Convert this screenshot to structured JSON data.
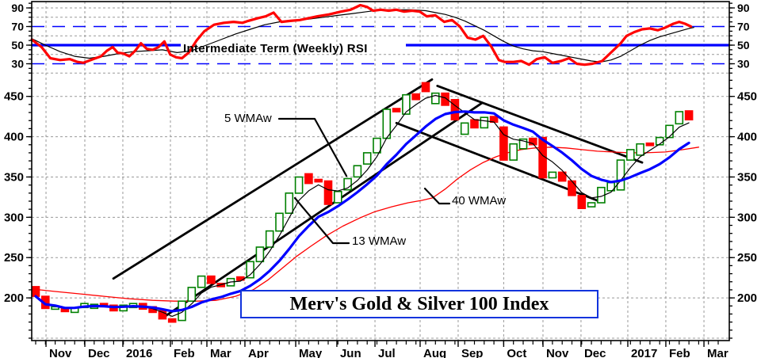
{
  "chart_data": {
    "type": "candlestick",
    "title": "Merv's Gold & Silver 100 Index",
    "rsi_panel": {
      "label": "Intermediate Term (Weekly) RSI",
      "ylim": [
        18,
        97
      ],
      "yticks": [
        90,
        70,
        50,
        30
      ],
      "gray_gridlines": [
        90,
        80,
        60,
        40,
        20
      ],
      "blue_dashed_levels": [
        70,
        30
      ],
      "blue_solid_level": 50,
      "rsi_fast": [
        [
          -0.4,
          56
        ],
        [
          0.6,
          48
        ],
        [
          1.5,
          36
        ],
        [
          2.5,
          34
        ],
        [
          3.5,
          35
        ],
        [
          4.3,
          32
        ],
        [
          4.9,
          31
        ],
        [
          5.9,
          35
        ],
        [
          6.7,
          38
        ],
        [
          7.3,
          44
        ],
        [
          7.9,
          48
        ],
        [
          8.4,
          42
        ],
        [
          9.0,
          41
        ],
        [
          9.6,
          38
        ],
        [
          10.2,
          44
        ],
        [
          10.8,
          52
        ],
        [
          11.4,
          46
        ],
        [
          12.0,
          45
        ],
        [
          12.6,
          48
        ],
        [
          13.2,
          54
        ],
        [
          13.8,
          40
        ],
        [
          14.4,
          37
        ],
        [
          15.0,
          36
        ],
        [
          15.7,
          42
        ],
        [
          16.5,
          55
        ],
        [
          17.3,
          65
        ],
        [
          18.3,
          72
        ],
        [
          19.3,
          74
        ],
        [
          20.3,
          75
        ],
        [
          21.2,
          74
        ],
        [
          21.8,
          76
        ],
        [
          22.8,
          79
        ],
        [
          23.6,
          81
        ],
        [
          24.4,
          85
        ],
        [
          25.2,
          75
        ],
        [
          26.1,
          76
        ],
        [
          27.1,
          77
        ],
        [
          28.0,
          79
        ],
        [
          28.9,
          81
        ],
        [
          30.1,
          83
        ],
        [
          31.3,
          86
        ],
        [
          32.3,
          88
        ],
        [
          33.3,
          93
        ],
        [
          34.0,
          91
        ],
        [
          34.6,
          87
        ],
        [
          35.4,
          88
        ],
        [
          36.2,
          87
        ],
        [
          37.0,
          88
        ],
        [
          37.8,
          86
        ],
        [
          38.6,
          87
        ],
        [
          39.4,
          86
        ],
        [
          40.1,
          81
        ],
        [
          41.0,
          82
        ],
        [
          41.9,
          75
        ],
        [
          42.7,
          77
        ],
        [
          43.5,
          70
        ],
        [
          44.3,
          58
        ],
        [
          45.1,
          56
        ],
        [
          45.9,
          60
        ],
        [
          46.7,
          49
        ],
        [
          47.5,
          34
        ],
        [
          48.1,
          32
        ],
        [
          49.0,
          32
        ],
        [
          49.8,
          33
        ],
        [
          50.6,
          29
        ],
        [
          51.4,
          35
        ],
        [
          52.2,
          37
        ],
        [
          53.0,
          31
        ],
        [
          53.9,
          33
        ],
        [
          54.7,
          36
        ],
        [
          55.5,
          30
        ],
        [
          56.3,
          29
        ],
        [
          57.1,
          30
        ],
        [
          58.1,
          33
        ],
        [
          59.0,
          42
        ],
        [
          60.0,
          52
        ],
        [
          60.6,
          60
        ],
        [
          61.4,
          64
        ],
        [
          62.2,
          67
        ],
        [
          63.0,
          68
        ],
        [
          63.8,
          66
        ],
        [
          64.6,
          69
        ],
        [
          65.4,
          73
        ],
        [
          66.0,
          75
        ],
        [
          66.6,
          73
        ],
        [
          67.2,
          70
        ]
      ],
      "rsi_slow": [
        [
          -0.4,
          57
        ],
        [
          1,
          50
        ],
        [
          2.5,
          43
        ],
        [
          4,
          38
        ],
        [
          5.5,
          36
        ],
        [
          7,
          38
        ],
        [
          8.5,
          41
        ],
        [
          10,
          43
        ],
        [
          11.5,
          44
        ],
        [
          13,
          45
        ],
        [
          14.5,
          42
        ],
        [
          16,
          44
        ],
        [
          17.5,
          50
        ],
        [
          19,
          56
        ],
        [
          20.5,
          62
        ],
        [
          22,
          67
        ],
        [
          23.5,
          72
        ],
        [
          25,
          75
        ],
        [
          26.5,
          76
        ],
        [
          28,
          78
        ],
        [
          29.5,
          80
        ],
        [
          31,
          82
        ],
        [
          32.5,
          84
        ],
        [
          34,
          86
        ],
        [
          35.5,
          88
        ],
        [
          37,
          88
        ],
        [
          38.5,
          88
        ],
        [
          40,
          87
        ],
        [
          41,
          85
        ],
        [
          42,
          83
        ],
        [
          43,
          80
        ],
        [
          44,
          76
        ],
        [
          45,
          71
        ],
        [
          46,
          66
        ],
        [
          47,
          60
        ],
        [
          48,
          54
        ],
        [
          49,
          49
        ],
        [
          50,
          46
        ],
        [
          51,
          44
        ],
        [
          52,
          43
        ],
        [
          53,
          41
        ],
        [
          54,
          39
        ],
        [
          55,
          37
        ],
        [
          56,
          35
        ],
        [
          57,
          33
        ],
        [
          58,
          32
        ],
        [
          59,
          34
        ],
        [
          60,
          38
        ],
        [
          61,
          44
        ],
        [
          62,
          50
        ],
        [
          63,
          55
        ],
        [
          64,
          59
        ],
        [
          65,
          62
        ],
        [
          66,
          65
        ],
        [
          67,
          68
        ],
        [
          67.5,
          69
        ]
      ]
    },
    "price_panel": {
      "ylim": [
        150,
        480
      ],
      "yticks": [
        450,
        400,
        350,
        300,
        250,
        200
      ],
      "gridlines": [
        450,
        400,
        350,
        300,
        250,
        200,
        150
      ],
      "candles": [
        [
          214,
          202
        ],
        [
          202,
          187
        ],
        [
          186,
          189
        ],
        [
          188,
          183
        ],
        [
          182,
          188
        ],
        [
          188,
          193
        ],
        [
          187,
          192
        ],
        [
          193,
          189
        ],
        [
          191,
          184
        ],
        [
          184,
          191
        ],
        [
          188,
          193
        ],
        [
          193,
          186
        ],
        [
          189,
          182
        ],
        [
          184,
          174
        ],
        [
          174,
          170
        ],
        [
          172,
          196
        ],
        [
          196,
          213
        ],
        [
          213,
          227
        ],
        [
          227,
          218
        ],
        [
          218,
          214
        ],
        [
          215,
          224
        ],
        [
          226,
          222
        ],
        [
          225,
          245
        ],
        [
          245,
          263
        ],
        [
          263,
          283
        ],
        [
          283,
          305
        ],
        [
          305,
          330
        ],
        [
          330,
          350
        ],
        [
          354,
          342
        ],
        [
          347,
          344
        ],
        [
          345,
          316
        ],
        [
          318,
          332
        ],
        [
          334,
          348
        ],
        [
          350,
          364
        ],
        [
          366,
          380
        ],
        [
          380,
          398
        ],
        [
          398,
          434
        ],
        [
          435,
          431
        ],
        [
          428,
          452
        ],
        [
          453,
          446
        ],
        [
          467,
          456
        ],
        [
          441,
          454
        ],
        [
          454,
          439
        ],
        [
          446,
          421
        ],
        [
          403,
          417
        ],
        [
          421,
          411
        ],
        [
          411,
          424
        ],
        [
          425,
          418
        ],
        [
          412,
          371
        ],
        [
          371,
          391
        ],
        [
          385,
          397
        ],
        [
          398,
          390
        ],
        [
          399,
          349
        ],
        [
          349,
          356
        ],
        [
          356,
          345
        ],
        [
          345,
          327
        ],
        [
          327,
          311
        ],
        [
          313,
          318
        ],
        [
          318,
          337
        ],
        [
          333,
          343
        ],
        [
          334,
          371
        ],
        [
          371,
          384
        ],
        [
          377,
          391
        ],
        [
          392,
          389
        ],
        [
          390,
          399
        ],
        [
          399,
          414
        ],
        [
          416,
          431
        ],
        [
          432,
          421
        ]
      ],
      "ma40_points": [
        [
          -0.4,
          211
        ],
        [
          2,
          208
        ],
        [
          4.5,
          205
        ],
        [
          7,
          202
        ],
        [
          9.5,
          199
        ],
        [
          12,
          197
        ],
        [
          14.2,
          196
        ],
        [
          16.5,
          196
        ],
        [
          18.5,
          197
        ],
        [
          20.5,
          202
        ],
        [
          22.3,
          210
        ],
        [
          23.8,
          222
        ],
        [
          25.2,
          236
        ],
        [
          26.7,
          251
        ],
        [
          28.2,
          264
        ],
        [
          29.8,
          277
        ],
        [
          31.5,
          289
        ],
        [
          33.2,
          299
        ],
        [
          34.8,
          307
        ],
        [
          36.5,
          313
        ],
        [
          38.2,
          318
        ],
        [
          39.6,
          321
        ],
        [
          40.7,
          324
        ],
        [
          42,
          335
        ],
        [
          43.3,
          348
        ],
        [
          44.6,
          359
        ],
        [
          45.9,
          368
        ],
        [
          47.2,
          375
        ],
        [
          48.4,
          380
        ],
        [
          49.8,
          384
        ],
        [
          51.2,
          386
        ],
        [
          52.8,
          387
        ],
        [
          54.4,
          386
        ],
        [
          56,
          384
        ],
        [
          57.6,
          382
        ],
        [
          59.2,
          381
        ],
        [
          60.8,
          380
        ],
        [
          62.6,
          380
        ],
        [
          64.6,
          381
        ],
        [
          66.4,
          384
        ],
        [
          68,
          387
        ]
      ],
      "channels": [
        {
          "name": "ascending-upper",
          "w1": 7.97,
          "v1": 224,
          "w2": 40.65,
          "v2": 471
        },
        {
          "name": "ascending-lower",
          "w1": 13.0,
          "v1": 175,
          "w2": 45.8,
          "v2": 442
        },
        {
          "name": "descending-upper",
          "w1": 41.2,
          "v1": 463,
          "w2": 62.2,
          "v2": 368
        },
        {
          "name": "descending-lower",
          "w1": 37.0,
          "v1": 417,
          "w2": 58.0,
          "v2": 319
        }
      ]
    },
    "x_axis": {
      "months": [
        {
          "label": "Nov",
          "week": 1.06
        },
        {
          "label": "Dec",
          "week": 5.04
        },
        {
          "label": "2016",
          "week": 8.94
        },
        {
          "label": "Feb",
          "week": 13.82
        },
        {
          "label": "Mar",
          "week": 17.56
        },
        {
          "label": "Apr",
          "week": 21.46
        },
        {
          "label": "May",
          "week": 26.67
        },
        {
          "label": "Jun",
          "week": 30.89
        },
        {
          "label": "Jul",
          "week": 34.8
        },
        {
          "label": "Aug",
          "week": 39.43
        },
        {
          "label": "Sep",
          "week": 43.33
        },
        {
          "label": "Oct",
          "week": 48.0
        },
        {
          "label": "Nov",
          "week": 52.03
        },
        {
          "label": "Dec",
          "week": 55.93
        },
        {
          "label": "2017",
          "week": 60.73
        },
        {
          "label": "Feb",
          "week": 64.63
        },
        {
          "label": "Mar",
          "week": 68.54
        }
      ]
    },
    "annotations": {
      "rsi_text": "Intermediate Term (Weekly) RSI",
      "ma5_text": "5 WMAw",
      "ma13_text": "13 WMAw",
      "ma40_text": "40 WMAw",
      "pointers": [
        {
          "name": "ma5-pointer",
          "path": [
            [
              352,
              150
            ],
            [
              397,
              150
            ],
            [
              437,
              222
            ]
          ]
        },
        {
          "name": "ma13-pointer",
          "path": [
            [
              440,
              307
            ],
            [
              420,
              307
            ],
            [
              372,
              250
            ]
          ]
        },
        {
          "name": "ma40-pointer",
          "path": [
            [
              536,
              238
            ],
            [
              554,
              257
            ],
            [
              567,
              257
            ]
          ]
        }
      ]
    },
    "colors": {
      "up_candle": "#008000",
      "down_candle": "#ff0000",
      "ma5": "#000000",
      "ma13": "#0000ff",
      "ma40": "#ff0000",
      "rsi_fast": "#ff0000",
      "rsi_slow": "#000000",
      "grid": "#999999",
      "blue_level": "#0000ff",
      "channel": "#000000",
      "frame": "#000000",
      "title_border": "#1133dd"
    }
  }
}
